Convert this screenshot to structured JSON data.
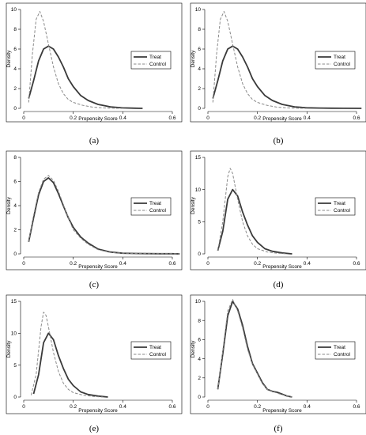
{
  "chart_data": [
    {
      "type": "line",
      "panel_label": "(a)",
      "xlabel": "Propensity Score",
      "ylabel": "Density",
      "xlim": [
        0,
        0.6
      ],
      "ylim": [
        0,
        10
      ],
      "xticks": [
        "0",
        "0.2",
        "0.4",
        "0.6"
      ],
      "xtick_values": [
        0,
        0.2,
        0.4,
        0.6
      ],
      "yticks": [
        "0",
        "2",
        "4",
        "6",
        "8",
        "10"
      ],
      "ytick_values": [
        0,
        2,
        4,
        6,
        8,
        10
      ],
      "legend_position": "right",
      "series": [
        {
          "name": "Treat",
          "style": "solid",
          "color": "#3a3a3a",
          "x": [
            0.02,
            0.04,
            0.06,
            0.08,
            0.1,
            0.12,
            0.14,
            0.16,
            0.18,
            0.2,
            0.23,
            0.26,
            0.3,
            0.35,
            0.4,
            0.45,
            0.48
          ],
          "y": [
            1.0,
            2.8,
            4.8,
            6.0,
            6.3,
            6.0,
            5.2,
            4.2,
            3.0,
            2.2,
            1.3,
            0.8,
            0.4,
            0.15,
            0.05,
            0.02,
            0.0
          ]
        },
        {
          "name": "Control",
          "style": "dashed",
          "color": "#8a8a8a",
          "x": [
            0.02,
            0.035,
            0.05,
            0.065,
            0.08,
            0.1,
            0.12,
            0.14,
            0.16,
            0.18,
            0.2,
            0.24,
            0.28,
            0.32,
            0.36,
            0.4
          ],
          "y": [
            0.6,
            5.5,
            9.0,
            9.8,
            8.8,
            6.5,
            4.2,
            2.5,
            1.5,
            0.9,
            0.6,
            0.3,
            0.12,
            0.05,
            0.02,
            0.0
          ]
        }
      ]
    },
    {
      "type": "line",
      "panel_label": "(b)",
      "xlabel": "Propensity Score",
      "ylabel": "Density",
      "xlim": [
        0,
        0.6
      ],
      "ylim": [
        0,
        10
      ],
      "xticks": [
        "0",
        "0.2",
        "0.4",
        "0.6"
      ],
      "xtick_values": [
        0,
        0.2,
        0.4,
        0.6
      ],
      "yticks": [
        "0",
        "2",
        "4",
        "6",
        "8",
        "10"
      ],
      "ytick_values": [
        0,
        2,
        4,
        6,
        8,
        10
      ],
      "legend_position": "right",
      "series": [
        {
          "name": "Treat",
          "style": "solid",
          "color": "#3a3a3a",
          "x": [
            0.02,
            0.04,
            0.06,
            0.08,
            0.1,
            0.12,
            0.14,
            0.16,
            0.18,
            0.2,
            0.23,
            0.26,
            0.3,
            0.35,
            0.4,
            0.45,
            0.5,
            0.55,
            0.62
          ],
          "y": [
            1.0,
            2.8,
            4.8,
            6.0,
            6.3,
            6.0,
            5.2,
            4.2,
            3.0,
            2.2,
            1.3,
            0.8,
            0.4,
            0.15,
            0.06,
            0.03,
            0.02,
            0.01,
            0.0
          ]
        },
        {
          "name": "Control",
          "style": "dashed",
          "color": "#8a8a8a",
          "x": [
            0.02,
            0.035,
            0.05,
            0.065,
            0.08,
            0.1,
            0.12,
            0.14,
            0.16,
            0.18,
            0.2,
            0.24,
            0.28,
            0.32,
            0.36,
            0.4
          ],
          "y": [
            0.6,
            5.5,
            9.0,
            9.8,
            8.8,
            6.5,
            4.2,
            2.5,
            1.5,
            0.9,
            0.6,
            0.3,
            0.12,
            0.05,
            0.02,
            0.0
          ]
        }
      ]
    },
    {
      "type": "line",
      "panel_label": "(c)",
      "xlabel": "Propensity Score",
      "ylabel": "Density",
      "xlim": [
        0,
        0.6
      ],
      "ylim": [
        0,
        8
      ],
      "xticks": [
        "0",
        "0.2",
        "0.4",
        "0.6"
      ],
      "xtick_values": [
        0,
        0.2,
        0.4,
        0.6
      ],
      "yticks": [
        "0",
        "2",
        "4",
        "6",
        "8"
      ],
      "ytick_values": [
        0,
        2,
        4,
        6,
        8
      ],
      "legend_position": "right",
      "series": [
        {
          "name": "Treat",
          "style": "solid",
          "color": "#3a3a3a",
          "x": [
            0.02,
            0.04,
            0.06,
            0.08,
            0.1,
            0.12,
            0.14,
            0.16,
            0.18,
            0.2,
            0.23,
            0.26,
            0.3,
            0.35,
            0.4,
            0.45,
            0.5,
            0.55,
            0.6,
            0.63
          ],
          "y": [
            1.0,
            3.0,
            4.9,
            6.0,
            6.3,
            5.9,
            5.0,
            4.0,
            3.0,
            2.2,
            1.4,
            0.9,
            0.4,
            0.15,
            0.05,
            0.03,
            0.02,
            0.01,
            0.01,
            0.0
          ]
        },
        {
          "name": "Control",
          "style": "dashed",
          "color": "#8a8a8a",
          "x": [
            0.02,
            0.04,
            0.06,
            0.08,
            0.1,
            0.12,
            0.14,
            0.16,
            0.18,
            0.2,
            0.23,
            0.26,
            0.3,
            0.35,
            0.4,
            0.45,
            0.5,
            0.55,
            0.6,
            0.63
          ],
          "y": [
            1.0,
            3.2,
            5.1,
            6.2,
            6.5,
            6.1,
            5.2,
            4.1,
            3.0,
            2.0,
            1.3,
            0.8,
            0.35,
            0.12,
            0.05,
            0.03,
            0.02,
            0.01,
            0.01,
            0.0
          ]
        }
      ]
    },
    {
      "type": "line",
      "panel_label": "(d)",
      "xlabel": "Propensity Score",
      "ylabel": "Density",
      "xlim": [
        0,
        0.6
      ],
      "ylim": [
        0,
        15
      ],
      "xticks": [
        "0",
        "0.2",
        "0.4",
        "0.6"
      ],
      "xtick_values": [
        0,
        0.2,
        0.4,
        0.6
      ],
      "yticks": [
        "0",
        "5",
        "10",
        "15"
      ],
      "ytick_values": [
        0,
        5,
        10,
        15
      ],
      "legend_position": "right",
      "series": [
        {
          "name": "Treat",
          "style": "solid",
          "color": "#3a3a3a",
          "x": [
            0.04,
            0.06,
            0.08,
            0.1,
            0.12,
            0.14,
            0.16,
            0.18,
            0.2,
            0.23,
            0.26,
            0.3,
            0.34
          ],
          "y": [
            0.5,
            3.5,
            8.5,
            10.0,
            9.0,
            6.5,
            4.5,
            2.8,
            1.8,
            0.8,
            0.4,
            0.15,
            0.0
          ]
        },
        {
          "name": "Control",
          "style": "dashed",
          "color": "#8a8a8a",
          "x": [
            0.04,
            0.06,
            0.08,
            0.09,
            0.1,
            0.12,
            0.14,
            0.16,
            0.18,
            0.2,
            0.24,
            0.28,
            0.32
          ],
          "y": [
            0.5,
            5.0,
            12.0,
            13.3,
            12.5,
            8.5,
            5.0,
            2.8,
            1.5,
            0.8,
            0.3,
            0.1,
            0.0
          ]
        }
      ]
    },
    {
      "type": "line",
      "panel_label": "(e)",
      "xlabel": "Propensity Score",
      "ylabel": "Density",
      "xlim": [
        0,
        0.6
      ],
      "ylim": [
        0,
        15
      ],
      "xticks": [
        "0",
        "0.2",
        "0.4",
        "0.6"
      ],
      "xtick_values": [
        0,
        0.2,
        0.4,
        0.6
      ],
      "yticks": [
        "0",
        "5",
        "10",
        "15"
      ],
      "ytick_values": [
        0,
        5,
        10,
        15
      ],
      "legend_position": "right",
      "series": [
        {
          "name": "Treat",
          "style": "solid",
          "color": "#3a3a3a",
          "x": [
            0.04,
            0.06,
            0.08,
            0.1,
            0.12,
            0.14,
            0.16,
            0.18,
            0.2,
            0.23,
            0.26,
            0.3,
            0.34
          ],
          "y": [
            0.5,
            3.5,
            8.5,
            10.0,
            9.0,
            6.5,
            4.5,
            2.8,
            1.8,
            0.8,
            0.4,
            0.15,
            0.0
          ]
        },
        {
          "name": "Control",
          "style": "dashed",
          "color": "#8a8a8a",
          "x": [
            0.03,
            0.05,
            0.07,
            0.08,
            0.09,
            0.1,
            0.12,
            0.14,
            0.16,
            0.18,
            0.2,
            0.24,
            0.28,
            0.32
          ],
          "y": [
            0.3,
            3.5,
            11.0,
            13.3,
            12.8,
            11.0,
            7.0,
            4.0,
            2.2,
            1.2,
            0.7,
            0.3,
            0.1,
            0.0
          ]
        }
      ]
    },
    {
      "type": "line",
      "panel_label": "(f)",
      "xlabel": "Propensity Score",
      "ylabel": "Density",
      "xlim": [
        0,
        0.6
      ],
      "ylim": [
        0,
        10
      ],
      "xticks": [
        "0",
        "0.2",
        "0.4",
        "0.6"
      ],
      "xtick_values": [
        0,
        0.2,
        0.4,
        0.6
      ],
      "yticks": [
        "0",
        "2",
        "4",
        "6",
        "8",
        "10"
      ],
      "ytick_values": [
        0,
        2,
        4,
        6,
        8,
        10
      ],
      "legend_position": "right",
      "series": [
        {
          "name": "Treat",
          "style": "solid",
          "color": "#3a3a3a",
          "x": [
            0.04,
            0.06,
            0.08,
            0.1,
            0.12,
            0.14,
            0.16,
            0.18,
            0.2,
            0.22,
            0.24,
            0.26,
            0.28,
            0.3,
            0.32,
            0.34
          ],
          "y": [
            0.8,
            4.5,
            8.5,
            10.0,
            9.2,
            7.5,
            5.3,
            3.5,
            2.5,
            1.5,
            0.8,
            0.6,
            0.5,
            0.3,
            0.1,
            0.0
          ]
        },
        {
          "name": "Control",
          "style": "dashed",
          "color": "#8a8a8a",
          "x": [
            0.04,
            0.06,
            0.08,
            0.1,
            0.12,
            0.14,
            0.16,
            0.18,
            0.2,
            0.22,
            0.24,
            0.26,
            0.28,
            0.3,
            0.32,
            0.34
          ],
          "y": [
            0.8,
            4.8,
            9.0,
            10.2,
            9.0,
            7.2,
            5.0,
            3.4,
            2.4,
            1.4,
            0.8,
            0.6,
            0.4,
            0.25,
            0.1,
            0.0
          ]
        }
      ]
    }
  ]
}
